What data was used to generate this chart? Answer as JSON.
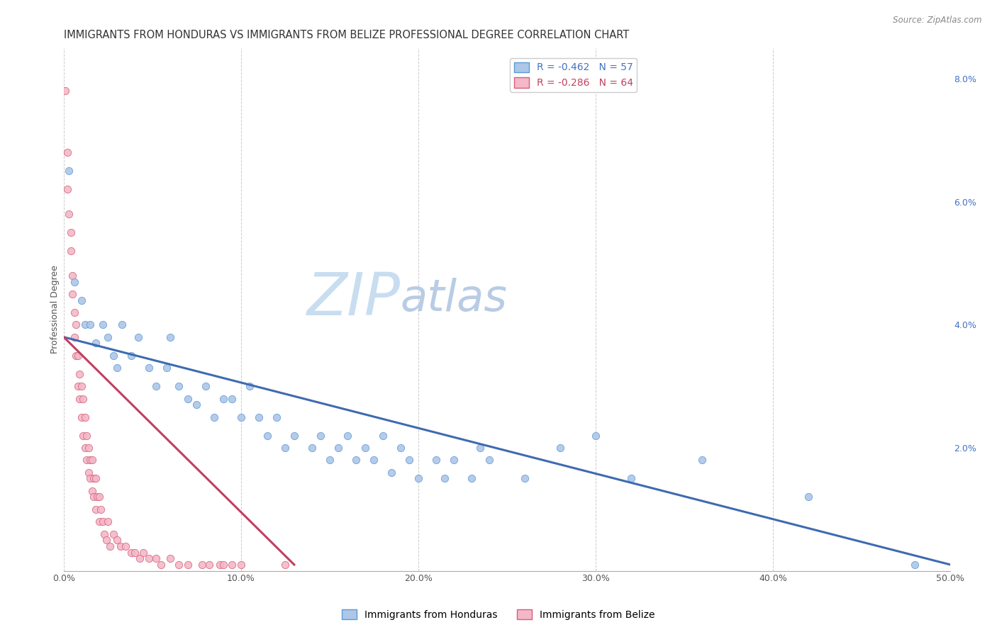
{
  "title": "IMMIGRANTS FROM HONDURAS VS IMMIGRANTS FROM BELIZE PROFESSIONAL DEGREE CORRELATION CHART",
  "source": "Source: ZipAtlas.com",
  "xlabel": "",
  "ylabel": "Professional Degree",
  "xlim": [
    0,
    0.5
  ],
  "ylim": [
    0,
    0.085
  ],
  "xticks": [
    0.0,
    0.1,
    0.2,
    0.3,
    0.4,
    0.5
  ],
  "xticklabels": [
    "0.0%",
    "10.0%",
    "20.0%",
    "30.0%",
    "40.0%",
    "50.0%"
  ],
  "yticks_right": [
    0.0,
    0.02,
    0.04,
    0.06,
    0.08
  ],
  "yticklabels_right": [
    "",
    "2.0%",
    "4.0%",
    "6.0%",
    "8.0%"
  ],
  "legend_labels": [
    "R = -0.462   N = 57",
    "R = -0.286   N = 64"
  ],
  "legend_colors": [
    "#aec6e8",
    "#f4b8c8"
  ],
  "watermark_zip": "ZIP",
  "watermark_atlas": "atlas",
  "series": [
    {
      "name": "Immigrants from Honduras",
      "color": "#aec6e8",
      "edge_color": "#5b9bd5",
      "x": [
        0.003,
        0.006,
        0.01,
        0.012,
        0.015,
        0.018,
        0.022,
        0.025,
        0.028,
        0.03,
        0.033,
        0.038,
        0.042,
        0.048,
        0.052,
        0.058,
        0.06,
        0.065,
        0.07,
        0.075,
        0.08,
        0.085,
        0.09,
        0.095,
        0.1,
        0.105,
        0.11,
        0.115,
        0.12,
        0.125,
        0.13,
        0.14,
        0.145,
        0.15,
        0.155,
        0.16,
        0.165,
        0.17,
        0.175,
        0.18,
        0.185,
        0.19,
        0.195,
        0.2,
        0.21,
        0.215,
        0.22,
        0.23,
        0.235,
        0.24,
        0.26,
        0.28,
        0.3,
        0.32,
        0.36,
        0.42,
        0.48
      ],
      "y": [
        0.065,
        0.047,
        0.044,
        0.04,
        0.04,
        0.037,
        0.04,
        0.038,
        0.035,
        0.033,
        0.04,
        0.035,
        0.038,
        0.033,
        0.03,
        0.033,
        0.038,
        0.03,
        0.028,
        0.027,
        0.03,
        0.025,
        0.028,
        0.028,
        0.025,
        0.03,
        0.025,
        0.022,
        0.025,
        0.02,
        0.022,
        0.02,
        0.022,
        0.018,
        0.02,
        0.022,
        0.018,
        0.02,
        0.018,
        0.022,
        0.016,
        0.02,
        0.018,
        0.015,
        0.018,
        0.015,
        0.018,
        0.015,
        0.02,
        0.018,
        0.015,
        0.02,
        0.022,
        0.015,
        0.018,
        0.012,
        0.001
      ],
      "trendline": {
        "x0": 0.0,
        "y0": 0.038,
        "x1": 0.5,
        "y1": 0.001
      }
    },
    {
      "name": "Immigrants from Belize",
      "color": "#f4b8c8",
      "edge_color": "#d4607a",
      "x": [
        0.001,
        0.002,
        0.002,
        0.003,
        0.004,
        0.004,
        0.005,
        0.005,
        0.006,
        0.006,
        0.007,
        0.007,
        0.008,
        0.008,
        0.009,
        0.009,
        0.01,
        0.01,
        0.011,
        0.011,
        0.012,
        0.012,
        0.013,
        0.013,
        0.014,
        0.014,
        0.015,
        0.015,
        0.016,
        0.016,
        0.017,
        0.017,
        0.018,
        0.018,
        0.019,
        0.02,
        0.02,
        0.021,
        0.022,
        0.023,
        0.024,
        0.025,
        0.026,
        0.028,
        0.03,
        0.032,
        0.035,
        0.038,
        0.04,
        0.043,
        0.045,
        0.048,
        0.052,
        0.055,
        0.06,
        0.065,
        0.07,
        0.078,
        0.082,
        0.088,
        0.09,
        0.095,
        0.1,
        0.125
      ],
      "y": [
        0.078,
        0.068,
        0.062,
        0.058,
        0.055,
        0.052,
        0.048,
        0.045,
        0.042,
        0.038,
        0.04,
        0.035,
        0.035,
        0.03,
        0.032,
        0.028,
        0.03,
        0.025,
        0.028,
        0.022,
        0.025,
        0.02,
        0.022,
        0.018,
        0.02,
        0.016,
        0.018,
        0.015,
        0.018,
        0.013,
        0.015,
        0.012,
        0.015,
        0.01,
        0.012,
        0.012,
        0.008,
        0.01,
        0.008,
        0.006,
        0.005,
        0.008,
        0.004,
        0.006,
        0.005,
        0.004,
        0.004,
        0.003,
        0.003,
        0.002,
        0.003,
        0.002,
        0.002,
        0.001,
        0.002,
        0.001,
        0.001,
        0.001,
        0.001,
        0.001,
        0.001,
        0.001,
        0.001,
        0.001
      ],
      "trendline": {
        "x0": 0.0,
        "y0": 0.038,
        "x1": 0.13,
        "y1": 0.001
      }
    }
  ],
  "grid_color": "#cccccc",
  "grid_style": "--",
  "background_color": "#ffffff",
  "title_fontsize": 10.5,
  "axis_label_fontsize": 9,
  "tick_fontsize": 9,
  "legend_fontsize": 10,
  "watermark_zip_color": "#c8ddf0",
  "watermark_atlas_color": "#b8cce4",
  "watermark_fontsize": 60,
  "trendline_colors": [
    "#3e6bb0",
    "#c04060"
  ]
}
